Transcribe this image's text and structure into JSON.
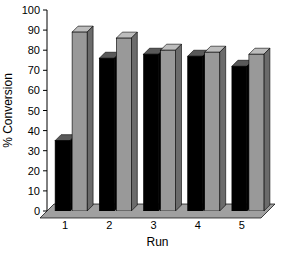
{
  "chart_data": {
    "type": "bar",
    "x_label": "Run",
    "y_label": "% Conversion",
    "categories": [
      "1",
      "2",
      "3",
      "4",
      "5"
    ],
    "series": [
      {
        "color": "#000000",
        "values": [
          35,
          76,
          78,
          77,
          72
        ]
      },
      {
        "color": "#999999",
        "values": [
          89,
          86,
          80,
          79,
          78
        ]
      }
    ],
    "ylim": [
      0,
      100
    ],
    "yticks": [
      0,
      10,
      20,
      30,
      40,
      50,
      60,
      70,
      80,
      90,
      100
    ],
    "grid": false
  }
}
